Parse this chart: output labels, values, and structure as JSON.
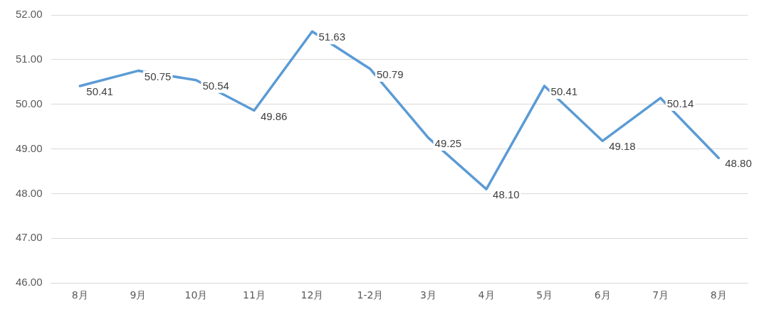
{
  "chart_data": {
    "type": "line",
    "categories": [
      "8月",
      "9月",
      "10月",
      "11月",
      "12月",
      "1-2月",
      "3月",
      "4月",
      "5月",
      "6月",
      "7月",
      "8月"
    ],
    "series": [
      {
        "color": "#5b9bd5",
        "values": [
          50.41,
          50.75,
          50.54,
          49.86,
          51.63,
          50.79,
          49.25,
          48.1,
          50.41,
          49.18,
          50.14,
          48.8
        ],
        "value_labels": [
          "50.41",
          "50.75",
          "50.54",
          "49.86",
          "51.63",
          "50.79",
          "49.25",
          "48.10",
          "50.41",
          "49.18",
          "50.14",
          "48.80"
        ]
      }
    ],
    "ylim": [
      46,
      52
    ],
    "yticks": [
      {
        "value": 46,
        "label": "46.00"
      },
      {
        "value": 47,
        "label": "47.00"
      },
      {
        "value": 48,
        "label": "48.00"
      },
      {
        "value": 49,
        "label": "49.00"
      },
      {
        "value": 50,
        "label": "50.00"
      },
      {
        "value": 51,
        "label": "51.00"
      },
      {
        "value": 52,
        "label": "52.00"
      }
    ],
    "grid": "y",
    "legend": false,
    "marker": "none",
    "line_style": "solid"
  }
}
